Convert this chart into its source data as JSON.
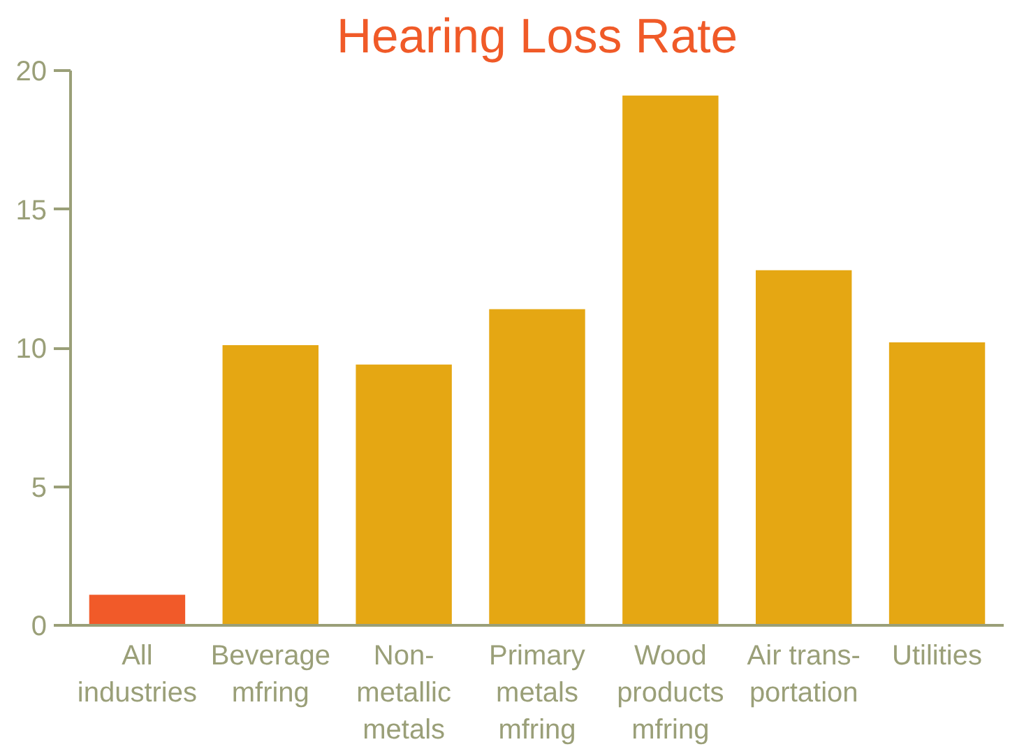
{
  "chart_data": {
    "type": "bar",
    "title": "Hearing Loss Rate",
    "categories": [
      "All\nindustries",
      "Beverage\nmfring",
      "Non-\nmetallic\nmetals",
      "Primary\nmetals\nmfring",
      "Wood\nproducts\nmfring",
      "Air trans-\nportation",
      "Utilities"
    ],
    "values": [
      1.1,
      10.1,
      9.4,
      11.4,
      19.1,
      12.8,
      10.2
    ],
    "colors": [
      "#f15a29",
      "#e5a713",
      "#e5a713",
      "#e5a713",
      "#e5a713",
      "#e5a713",
      "#e5a713"
    ],
    "ylim": [
      0,
      20
    ],
    "yticks": [
      0,
      5,
      10,
      15,
      20
    ],
    "grid": false
  }
}
